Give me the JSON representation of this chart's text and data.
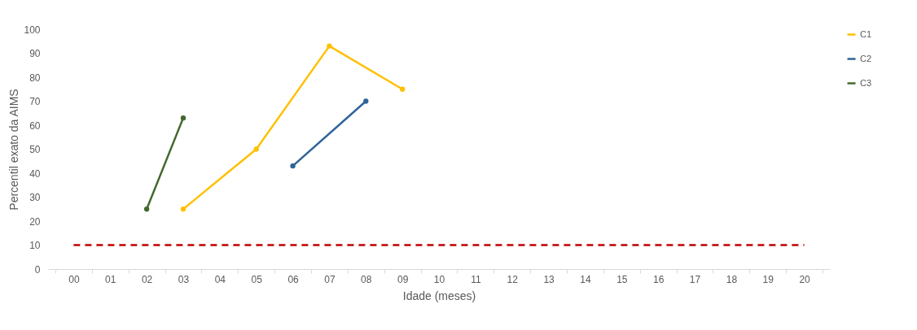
{
  "chart_data": {
    "type": "line",
    "xlabel": "Idade (meses)",
    "ylabel": "Percentil exato da AIMS",
    "categories": [
      "00",
      "01",
      "02",
      "03",
      "04",
      "05",
      "06",
      "07",
      "08",
      "09",
      "10",
      "11",
      "12",
      "13",
      "14",
      "15",
      "16",
      "17",
      "18",
      "19",
      "20"
    ],
    "ylim": [
      0,
      100
    ],
    "yticks": [
      0,
      10,
      20,
      30,
      40,
      50,
      60,
      70,
      80,
      90,
      100
    ],
    "legend": "top right",
    "series": [
      {
        "name": "C1",
        "color": "#ffc000",
        "marker": "circle",
        "values": [
          null,
          null,
          null,
          25,
          null,
          50,
          null,
          93,
          null,
          75,
          null,
          null,
          null,
          null,
          null,
          null,
          null,
          null,
          null,
          null,
          null
        ]
      },
      {
        "name": "C2",
        "color": "#2e6399",
        "marker": "circle",
        "values": [
          null,
          null,
          null,
          null,
          null,
          null,
          43,
          null,
          70,
          null,
          null,
          null,
          null,
          null,
          null,
          null,
          null,
          null,
          null,
          null,
          null
        ]
      },
      {
        "name": "C3",
        "color": "#43682b",
        "marker": "circle",
        "values": [
          null,
          null,
          25,
          63,
          null,
          null,
          null,
          null,
          null,
          null,
          null,
          null,
          null,
          null,
          null,
          null,
          null,
          null,
          null,
          null,
          null
        ]
      },
      {
        "color": "#c00000",
        "marker": "none",
        "line_style": "dashed",
        "values": [
          10,
          10,
          10,
          10,
          10,
          10,
          10,
          10,
          10,
          10,
          10,
          10,
          10,
          10,
          10,
          10,
          10,
          10,
          10,
          10,
          10
        ]
      }
    ]
  }
}
